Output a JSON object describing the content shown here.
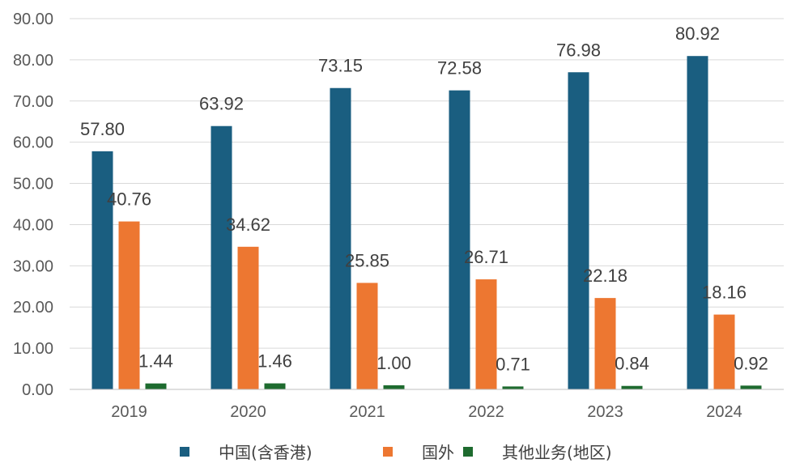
{
  "chart_data": {
    "type": "bar",
    "categories": [
      "2019",
      "2020",
      "2021",
      "2022",
      "2023",
      "2024"
    ],
    "series": [
      {
        "name": "中国(含香港)",
        "color": "#1a5e80",
        "values": [
          57.8,
          63.92,
          73.15,
          72.58,
          76.98,
          80.92
        ],
        "labels": [
          "57.80",
          "63.92",
          "73.15",
          "72.58",
          "76.98",
          "80.92"
        ]
      },
      {
        "name": "国外",
        "color": "#ed7731",
        "values": [
          40.76,
          34.62,
          25.85,
          26.71,
          22.18,
          18.16
        ],
        "labels": [
          "40.76",
          "34.62",
          "25.85",
          "26.71",
          "22.18",
          "18.16"
        ]
      },
      {
        "name": "其他业务(地区)",
        "color": "#1e6b2f",
        "values": [
          1.44,
          1.46,
          1.0,
          0.71,
          0.84,
          0.92
        ],
        "labels": [
          "1.44",
          "1.46",
          "1.00",
          "0.71",
          "0.84",
          "0.92"
        ]
      }
    ],
    "ylim": [
      0,
      90
    ],
    "yticks": [
      "0.00",
      "10.00",
      "20.00",
      "30.00",
      "40.00",
      "50.00",
      "60.00",
      "70.00",
      "80.00",
      "90.00"
    ],
    "grid": true,
    "legend": "bottom",
    "title": "",
    "xlabel": "",
    "ylabel": ""
  }
}
